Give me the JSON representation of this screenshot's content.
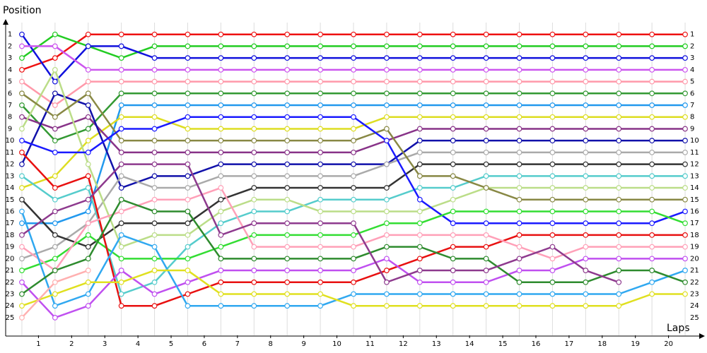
{
  "chart_data": {
    "type": "line",
    "y_label": "Position",
    "x_label": "Laps",
    "x": [
      0,
      1,
      2,
      3,
      4,
      5,
      6,
      7,
      8,
      9,
      10,
      11,
      12,
      13,
      14,
      15,
      16,
      17,
      18,
      19,
      20
    ],
    "xlim": [
      -0.5,
      20.5
    ],
    "xticks": [
      {
        "value": 0.5,
        "label": "1"
      },
      {
        "value": 1.5,
        "label": "2"
      },
      {
        "value": 2.5,
        "label": "3"
      },
      {
        "value": 3.5,
        "label": "4"
      },
      {
        "value": 4.5,
        "label": "5"
      },
      {
        "value": 5.5,
        "label": "6"
      },
      {
        "value": 6.5,
        "label": "7"
      },
      {
        "value": 7.5,
        "label": "8"
      },
      {
        "value": 8.5,
        "label": "9"
      },
      {
        "value": 9.5,
        "label": "10"
      },
      {
        "value": 10.5,
        "label": "11"
      },
      {
        "value": 11.5,
        "label": "12"
      },
      {
        "value": 12.5,
        "label": "13"
      },
      {
        "value": 13.5,
        "label": "14"
      },
      {
        "value": 14.5,
        "label": "15"
      },
      {
        "value": 15.5,
        "label": "16"
      },
      {
        "value": 16.5,
        "label": "17"
      },
      {
        "value": 17.5,
        "label": "18"
      },
      {
        "value": 18.5,
        "label": "19"
      },
      {
        "value": 19.5,
        "label": "20"
      }
    ],
    "ylim": [
      26.5,
      0
    ],
    "yticks": [
      1,
      2,
      3,
      4,
      5,
      6,
      7,
      8,
      9,
      10,
      11,
      12,
      13,
      14,
      15,
      16,
      17,
      18,
      19,
      20,
      21,
      22,
      23,
      24,
      25
    ],
    "grid": true,
    "series": [
      {
        "color": "#ee1111",
        "values": [
          4,
          3,
          1,
          1,
          1,
          1,
          1,
          1,
          1,
          1,
          1,
          1,
          1,
          1,
          1,
          1,
          1,
          1,
          1,
          1,
          1
        ]
      },
      {
        "color": "#22cc22",
        "values": [
          3,
          1,
          2,
          3,
          2,
          2,
          2,
          2,
          2,
          2,
          2,
          2,
          2,
          2,
          2,
          2,
          2,
          2,
          2,
          2,
          2
        ]
      },
      {
        "color": "#1111dd",
        "values": [
          1,
          5,
          2,
          2,
          3,
          3,
          3,
          3,
          3,
          3,
          3,
          3,
          3,
          3,
          3,
          3,
          3,
          3,
          3,
          3,
          3
        ]
      },
      {
        "color": "#cc55ee",
        "values": [
          2,
          2,
          4,
          4,
          4,
          4,
          4,
          4,
          4,
          4,
          4,
          4,
          4,
          4,
          4,
          4,
          4,
          4,
          4,
          4,
          4
        ]
      },
      {
        "color": "#ff99aa",
        "values": [
          5,
          7,
          5,
          5,
          5,
          5,
          5,
          5,
          5,
          5,
          5,
          5,
          5,
          5,
          5,
          5,
          5,
          5,
          5,
          5,
          5
        ]
      },
      {
        "color": "#339933",
        "values": [
          7,
          10,
          9,
          6,
          6,
          6,
          6,
          6,
          6,
          6,
          6,
          6,
          6,
          6,
          6,
          6,
          6,
          6,
          6,
          6,
          6
        ]
      },
      {
        "color": "#2299ee",
        "values": [
          17,
          17,
          16,
          7,
          7,
          7,
          7,
          7,
          7,
          7,
          7,
          7,
          7,
          7,
          7,
          7,
          7,
          7,
          7,
          7,
          7
        ]
      },
      {
        "color": "#dddd22",
        "values": [
          14,
          13,
          10,
          8,
          8,
          9,
          9,
          9,
          9,
          9,
          9,
          8,
          8,
          8,
          8,
          8,
          8,
          8,
          8,
          8,
          8
        ]
      },
      {
        "color": "#883388",
        "values": [
          8,
          9,
          8,
          11,
          11,
          11,
          11,
          11,
          11,
          11,
          11,
          10,
          9,
          9,
          9,
          9,
          9,
          9,
          9,
          9,
          9
        ]
      },
      {
        "color": "#1111aa",
        "values": [
          12,
          6,
          7,
          14,
          13,
          13,
          12,
          12,
          12,
          12,
          12,
          12,
          10,
          10,
          10,
          10,
          10,
          10,
          10,
          10,
          10
        ]
      },
      {
        "color": "#aaaaaa",
        "values": [
          20,
          19,
          17,
          13,
          14,
          14,
          13,
          13,
          13,
          13,
          13,
          12,
          11,
          11,
          11,
          11,
          11,
          11,
          11,
          11,
          11
        ]
      },
      {
        "color": "#333333",
        "values": [
          15,
          18,
          19,
          17,
          17,
          17,
          15,
          14,
          14,
          14,
          14,
          14,
          12,
          12,
          12,
          12,
          12,
          12,
          12,
          12,
          12
        ]
      },
      {
        "color": "#55cccc",
        "values": [
          13,
          15,
          14,
          23,
          22,
          19,
          17,
          16,
          16,
          15,
          15,
          15,
          14,
          14,
          13,
          13,
          13,
          13,
          13,
          13,
          13
        ]
      },
      {
        "color": "#bbdd88",
        "values": [
          9,
          4,
          12,
          19,
          18,
          18,
          16,
          15,
          15,
          16,
          16,
          16,
          16,
          15,
          14,
          14,
          14,
          14,
          14,
          14,
          14
        ]
      },
      {
        "color": "#888844",
        "values": [
          6,
          8,
          6,
          10,
          10,
          10,
          10,
          10,
          10,
          10,
          10,
          9,
          13,
          13,
          14,
          15,
          15,
          15,
          15,
          15,
          15
        ]
      },
      {
        "color": "#1a1aff",
        "values": [
          10,
          11,
          11,
          9,
          9,
          8,
          8,
          8,
          8,
          8,
          8,
          10,
          15,
          17,
          17,
          17,
          17,
          17,
          17,
          17,
          16
        ]
      },
      {
        "color": "#33dd33",
        "values": [
          21,
          20,
          18,
          20,
          20,
          20,
          19,
          18,
          18,
          18,
          18,
          17,
          17,
          16,
          16,
          16,
          16,
          16,
          16,
          16,
          17
        ]
      },
      {
        "color": "#e81010",
        "values": [
          11,
          14,
          13,
          24,
          24,
          23,
          22,
          22,
          22,
          22,
          22,
          21,
          20,
          19,
          19,
          18,
          18,
          18,
          18,
          18,
          18
        ]
      },
      {
        "color": "#ffa0b8",
        "values": [
          19,
          21,
          17,
          16,
          15,
          15,
          14,
          19,
          19,
          19,
          19,
          18,
          18,
          18,
          18,
          19,
          20,
          19,
          19,
          19,
          19
        ]
      },
      {
        "color": "#c050f0",
        "values": [
          22,
          25,
          24,
          21,
          23,
          22,
          21,
          21,
          21,
          21,
          21,
          20,
          22,
          22,
          22,
          21,
          21,
          20,
          20,
          20,
          20
        ]
      },
      {
        "color": "#30a8f0",
        "values": [
          16,
          24,
          23,
          18,
          19,
          24,
          24,
          24,
          24,
          24,
          23,
          23,
          23,
          23,
          23,
          23,
          23,
          23,
          23,
          22,
          21
        ]
      },
      {
        "color": "#2e8b2e",
        "values": [
          23,
          21,
          20,
          15,
          16,
          16,
          20,
          20,
          20,
          20,
          20,
          19,
          19,
          20,
          20,
          22,
          22,
          22,
          21,
          21,
          22
        ]
      },
      {
        "color": "#e0e020",
        "values": [
          24,
          23,
          22,
          22,
          21,
          21,
          23,
          23,
          23,
          23,
          24,
          24,
          24,
          24,
          24,
          24,
          24,
          24,
          24,
          23,
          23
        ]
      },
      {
        "color": "#8e3a8e",
        "values": [
          18,
          16,
          15,
          12,
          12,
          12,
          18,
          17,
          17,
          17,
          17,
          22,
          21,
          21,
          21,
          20,
          19,
          21,
          22,
          null,
          null
        ]
      },
      {
        "color": "#ffb0b0",
        "values": [
          25,
          22,
          21,
          null,
          null,
          null,
          null,
          null,
          null,
          null,
          null,
          null,
          null,
          null,
          null,
          null,
          null,
          null,
          null,
          null,
          null
        ]
      }
    ]
  }
}
